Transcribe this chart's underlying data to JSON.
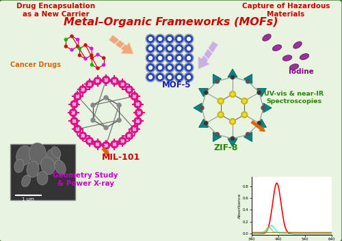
{
  "background_color": "#e8f3e0",
  "border_color": "#3a7a30",
  "title": "Metal–Organic Frameworks (MOFs)",
  "title_color": "#cc0000",
  "title_fontsize": 11.5,
  "top_left_label": "Drug Encapsulation\nas a New Carrier",
  "top_right_label": "Capture of Hazardous\nMaterials",
  "cancer_drugs_label": "Cancer Drugs",
  "iodine_label": "Iodine",
  "mof5_label": "MOF-5",
  "mil101_label": "MIL-101",
  "zif8_label": "ZIF-8",
  "geo_label": "Geometry Study\n& Power X-ray",
  "uv_label": "UV-vis & near-IR\nSpectroscopies",
  "label_color_red": "#cc0000",
  "label_color_orange": "#dd6600",
  "label_color_purple": "#880088",
  "label_color_magenta": "#cc00cc",
  "label_color_green": "#228800",
  "label_color_blue": "#1a1aaa",
  "arrow_orange_color": "#f0a070",
  "arrow_purple_color": "#c8a8e0",
  "iodine_color": "#993399",
  "figsize": [
    5.0,
    3.53
  ],
  "dpi": 100
}
